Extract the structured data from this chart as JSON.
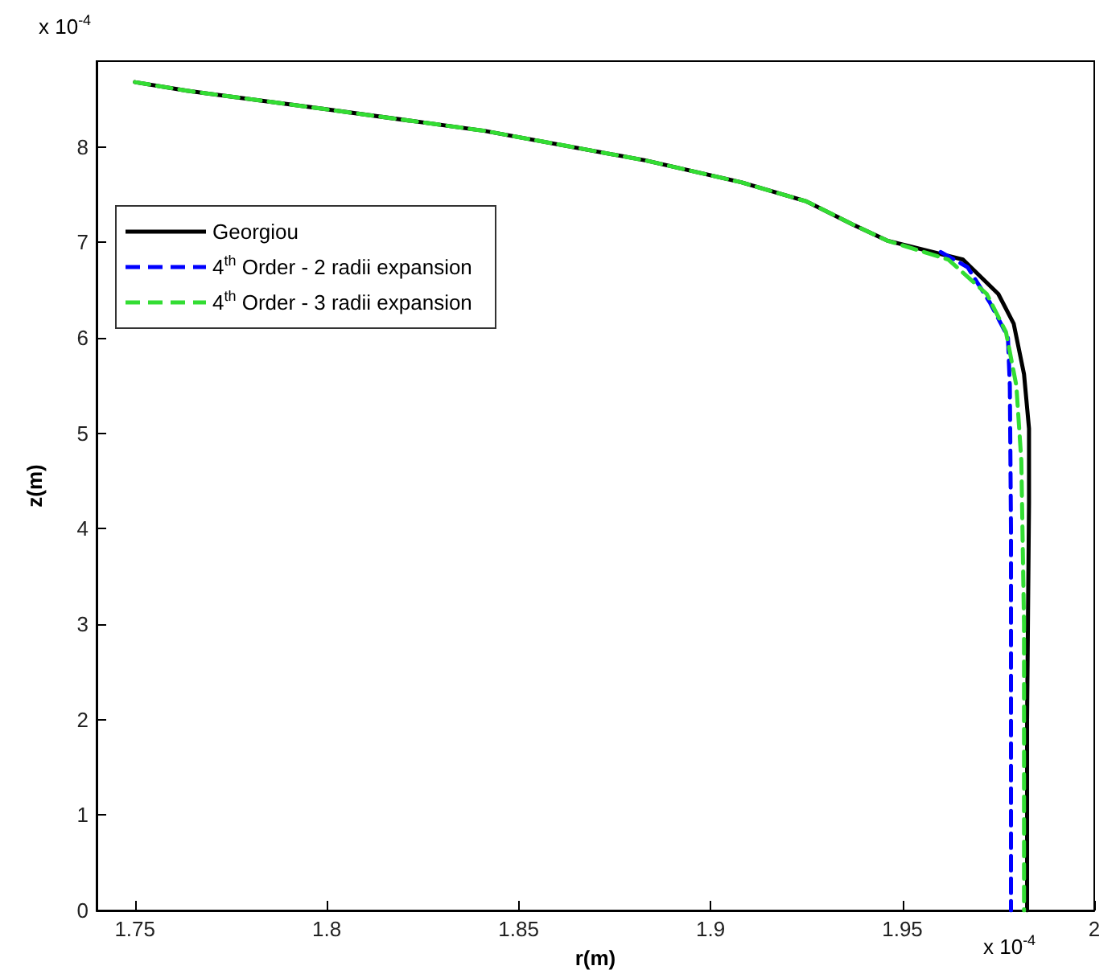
{
  "chart_data": {
    "type": "line",
    "xlabel": "r(m)",
    "ylabel": "z(m)",
    "annotations": [
      "x 10$^{-4}$",
      "x 10$^{-4}$"
    ],
    "xlim": [
      1.74,
      2
    ],
    "xticks": [
      1.75,
      1.8,
      1.85,
      1.9,
      1.95,
      2
    ],
    "ylim": [
      0,
      8.9
    ],
    "yticks": [
      0,
      1,
      2,
      3,
      4,
      5,
      6,
      7,
      8
    ],
    "grid": false,
    "legend": "top left",
    "marker": "none",
    "series": [
      {
        "name": "Georgiou",
        "color": "#000000",
        "line_style": "solid",
        "x": [
          1.75,
          1.7635,
          1.799,
          1.841,
          1.883,
          1.908,
          1.925,
          1.937,
          1.946,
          1.9658,
          1.975,
          1.979,
          1.9817,
          1.983,
          1.983,
          1.9825,
          1.9825
        ],
        "values": [
          8.68,
          8.59,
          8.4,
          8.17,
          7.86,
          7.63,
          7.43,
          7.19,
          7.02,
          6.82,
          6.46,
          6.15,
          5.62,
          5.05,
          4.27,
          2,
          0
        ]
      },
      {
        "name": "4$^{th}$ Order - 2 radii expansion",
        "color": "#0000ff",
        "line_style": "dashed",
        "x": [
          1.96,
          1.967,
          1.9728,
          1.9775,
          1.978,
          1.9783,
          1.9783
        ],
        "values": [
          6.9,
          6.74,
          6.37,
          6.01,
          5.5,
          4,
          0
        ]
      },
      {
        "name": "4$^{th}$ Order - 3 radii expansion",
        "color": "#33dd33",
        "line_style": "dashed",
        "x": [
          1.75,
          1.7635,
          1.799,
          1.841,
          1.883,
          1.908,
          1.925,
          1.937,
          1.946,
          1.962,
          1.972,
          1.977,
          1.9797,
          1.981,
          1.9817,
          1.9817
        ],
        "values": [
          8.68,
          8.59,
          8.4,
          8.17,
          7.86,
          7.63,
          7.43,
          7.19,
          7.02,
          6.82,
          6.46,
          6.06,
          5.5,
          4.71,
          3,
          0
        ]
      }
    ]
  }
}
